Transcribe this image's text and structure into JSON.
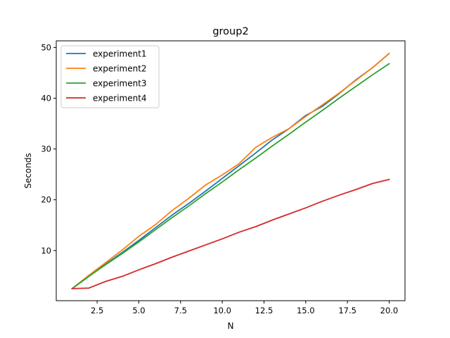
{
  "chart_data": {
    "type": "line",
    "title": "group2",
    "xlabel": "N",
    "ylabel": "Seconds",
    "xlim": [
      0.05,
      20.95
    ],
    "ylim": [
      0.12,
      51.3
    ],
    "xticks": [
      2.5,
      5.0,
      7.5,
      10.0,
      12.5,
      15.0,
      17.5,
      20.0
    ],
    "xtick_labels": [
      "2.5",
      "5.0",
      "7.5",
      "10.0",
      "12.5",
      "15.0",
      "17.5",
      "20.0"
    ],
    "yticks": [
      10,
      20,
      30,
      40,
      50
    ],
    "ytick_labels": [
      "10",
      "20",
      "30",
      "40",
      "50"
    ],
    "grid": false,
    "legend_position": "top-left",
    "x": [
      1,
      2,
      3,
      4,
      5,
      6,
      7,
      8,
      9,
      10,
      11,
      12,
      13,
      14,
      15,
      16,
      17,
      18,
      19,
      20
    ],
    "series": [
      {
        "name": "experiment1",
        "color": "#1f77b4",
        "values": [
          2.5,
          4.9,
          7.3,
          9.6,
          12.0,
          14.5,
          17.0,
          19.3,
          21.7,
          24.2,
          26.7,
          29.2,
          31.8,
          34.0,
          36.6,
          38.4,
          40.9,
          43.6,
          46.0,
          48.8
        ]
      },
      {
        "name": "experiment2",
        "color": "#ff7f0e",
        "values": [
          2.5,
          5.1,
          7.6,
          10.1,
          12.8,
          15.1,
          17.9,
          20.3,
          22.9,
          24.9,
          27.1,
          30.3,
          32.3,
          34.0,
          36.4,
          38.7,
          41.0,
          43.5,
          46.0,
          48.8
        ]
      },
      {
        "name": "experiment3",
        "color": "#2ca02c",
        "values": [
          2.5,
          4.9,
          7.2,
          9.4,
          11.7,
          14.1,
          16.5,
          18.8,
          21.2,
          23.5,
          25.9,
          28.2,
          30.6,
          32.9,
          35.3,
          37.6,
          40.0,
          42.3,
          44.6,
          46.8
        ]
      },
      {
        "name": "experiment4",
        "color": "#d62728",
        "values": [
          2.5,
          2.6,
          3.9,
          4.9,
          6.2,
          7.4,
          8.7,
          9.9,
          11.1,
          12.3,
          13.6,
          14.7,
          16.0,
          17.2,
          18.4,
          19.7,
          20.9,
          22.0,
          23.2,
          24.0
        ]
      }
    ]
  }
}
